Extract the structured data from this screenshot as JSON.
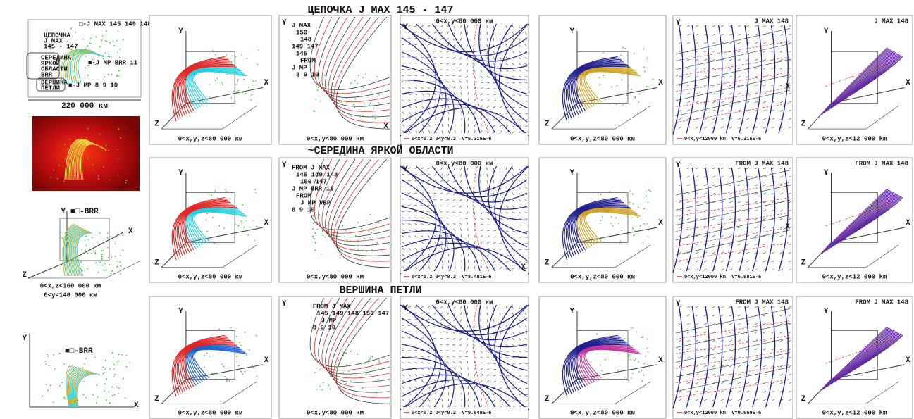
{
  "left_panels": {
    "overview": {
      "max_label": "□-J MAX 145 149 148 150 147",
      "chain": [
        "ЦЕПОЧКА",
        "J MAX",
        "145 - 147"
      ],
      "middle": [
        "СЕРЕДИНА",
        "ЯРКОЙ",
        "ОБЛАСТИ",
        "BRR"
      ],
      "mp_brr": "■-J MP BRR 11",
      "apex": [
        "ВЕРШИНА",
        "ПЕТЛИ"
      ],
      "mp": "■-J MP 8 9 10",
      "scale": "220 000 км"
    },
    "side3d": {
      "axes": {
        "y": "Y",
        "x": "X",
        "z": "Z"
      },
      "legend": "■□-BRR",
      "captions": [
        "0<x,z<160 000 км",
        "0<y<140 000 км"
      ]
    },
    "side2d": {
      "axes": {
        "y": "Y",
        "x": "X"
      },
      "legend": "■□-BRR"
    }
  },
  "rows": [
    {
      "title": "ЦЕПОЧКА J MAX 145 - 147",
      "panels": [
        {
          "kind": "3d",
          "colors": [
            "#e02020",
            "#20d0e0"
          ],
          "axes": {
            "y": "Y",
            "x": "X",
            "z": "Z"
          },
          "caption": "0<x,y,z<80 000 км"
        },
        {
          "kind": "contour",
          "axes": {
            "y": "Y",
            "x": "X"
          },
          "notes": [
            "J MAX",
            "150",
            "148",
            "149 147",
            "145",
            "FROM",
            "J MP",
            "8 9 10"
          ],
          "caption": "0<x,y<80 000 км"
        },
        {
          "kind": "vector",
          "axes": {
            "y": "Y"
          },
          "header": "0<x,y<80 000 км",
          "caption": "0<x<0.2 0<y<0.2 —V=5.315E-6"
        },
        {
          "kind": "3d",
          "colors": [
            "#1a1a8a",
            "#d0a020"
          ],
          "axes": {
            "y": "Y",
            "x": "X",
            "z": "Z"
          },
          "caption": "0<x,y,z<80 000 км"
        },
        {
          "kind": "field2d",
          "axes": {
            "y": "Y",
            "x": "X"
          },
          "header": "J MAX 148",
          "caption": "0<x,y<12000 km —V=5.315E-6"
        },
        {
          "kind": "lines3d",
          "colors": [
            "#9a2aa0",
            "#2a2aa0"
          ],
          "axes": {
            "y": "Y",
            "x": "X",
            "z": "Z"
          },
          "header": "J MAX 148",
          "caption": "0<x,y,z<12 000 km"
        }
      ]
    },
    {
      "title": "~СЕРЕДИНА ЯРКОЙ ОБЛАСТИ",
      "panels": [
        {
          "kind": "3d",
          "colors": [
            "#e02020",
            "#20d0e0"
          ],
          "axes": {
            "y": "Y",
            "x": "X",
            "z": "Z"
          },
          "caption": "0<x,y,z<80 000 км"
        },
        {
          "kind": "contour",
          "axes": {
            "y": "Y"
          },
          "notes": [
            "FROM J MAX",
            "145 149 148",
            "150 147",
            "J MP BRR 11",
            "FROM",
            "J MP VBP",
            "8 9 10"
          ],
          "caption": "0<x,y<80 000 км"
        },
        {
          "kind": "vector",
          "axes": {
            "y": "Y",
            "x": "X"
          },
          "header": "0<x,y<80 000 км",
          "caption": "0<x<0.2 0<y<0.2 —V=8.481E-6"
        },
        {
          "kind": "3d",
          "colors": [
            "#1a1a8a",
            "#d0a020"
          ],
          "axes": {
            "y": "Y",
            "x": "X",
            "z": "Z"
          },
          "caption": "0<x,y,z<80 000 км"
        },
        {
          "kind": "field2d",
          "axes": {
            "y": "Y",
            "x": "X"
          },
          "header": "FROM J MAX 148",
          "caption": "0<x,y<12000 km —V=6.581E-6"
        },
        {
          "kind": "lines3d",
          "colors": [
            "#9a2aa0",
            "#2a2aa0"
          ],
          "axes": {
            "y": "Y",
            "x": "X",
            "z": "Z"
          },
          "header": "FROM J MAX 148",
          "caption": "0<x,y,z<12 000 km"
        }
      ]
    },
    {
      "title": "ВЕРШИНА ПЕТЛИ",
      "panels": [
        {
          "kind": "3d",
          "colors": [
            "#e02020",
            "#1a60d0"
          ],
          "axes": {
            "y": "Y",
            "x": "X",
            "z": "Z"
          },
          "caption": "0<x,y,z<80 000 км"
        },
        {
          "kind": "contour",
          "axes": {
            "y": "Y"
          },
          "notes": [
            "FROM J MAX",
            "145 149 148 150 147",
            "J MP",
            "8 9 10"
          ],
          "caption": "0<x,y<80 000 км"
        },
        {
          "kind": "vector",
          "axes": {
            "y": "Y"
          },
          "header": "0<x,y<80 000 км",
          "caption": "0<x<0.2 0<y<0.2 —V=9.548E-6"
        },
        {
          "kind": "3d",
          "colors": [
            "#1a1a8a",
            "#c030a0"
          ],
          "axes": {
            "y": "Y",
            "x": "X",
            "z": "Z"
          },
          "caption": "0<x,y,z<80 000 км"
        },
        {
          "kind": "field2d",
          "axes": {
            "y": "Y"
          },
          "header": "FROM J MAX 148",
          "caption": "0<x,y<12000 km —V=9.550E-6"
        },
        {
          "kind": "lines3d",
          "colors": [
            "#9a2aa0",
            "#2a2aa0"
          ],
          "axes": {
            "y": "Y",
            "x": "X",
            "z": "Z"
          },
          "header": "FROM J MAX 148",
          "caption": "0<x,y,z<12 000 km"
        }
      ]
    }
  ]
}
